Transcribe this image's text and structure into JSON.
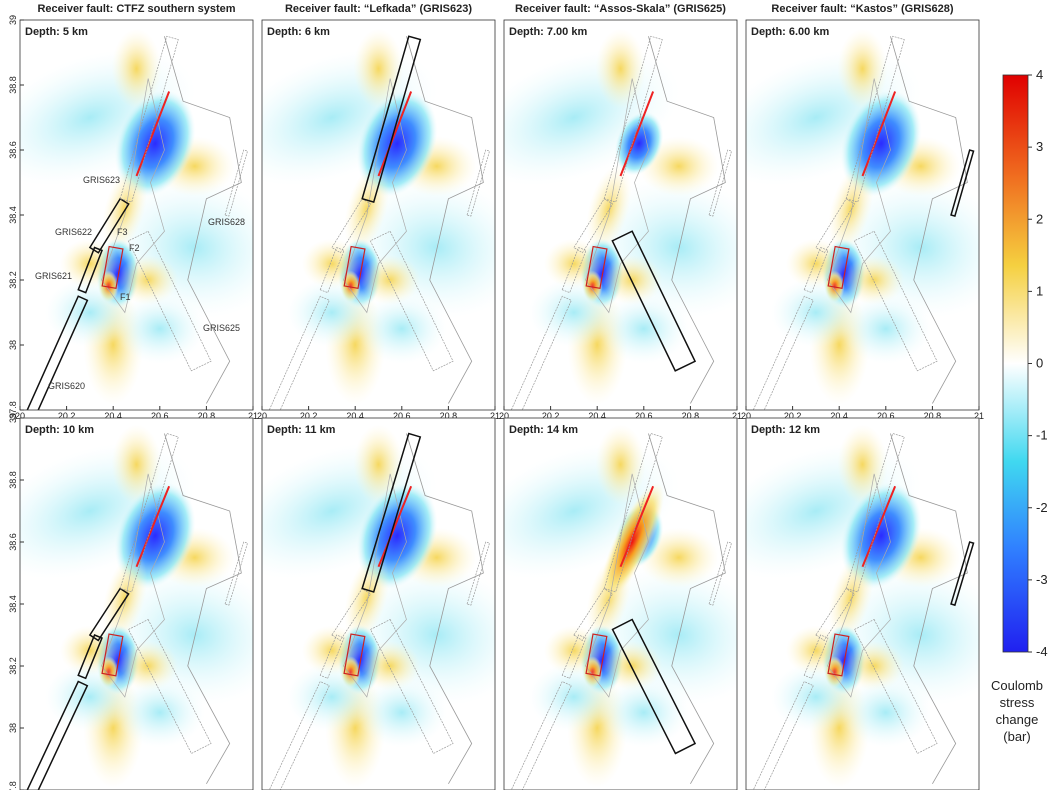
{
  "columns": [
    {
      "title": "Receiver fault: CTFZ southern system"
    },
    {
      "title": "Receiver fault: “Lefkada” (GRIS623)"
    },
    {
      "title": "Receiver fault: “Assos-Skala” (GRIS625)"
    },
    {
      "title": "Receiver fault: “Kastos” (GRIS628)"
    }
  ],
  "panels": [
    {
      "depth": "Depth: 5 km"
    },
    {
      "depth": "Depth: 6 km"
    },
    {
      "depth": "Depth: 7.00 km"
    },
    {
      "depth": "Depth: 6.00 km"
    },
    {
      "depth": "Depth: 10 km"
    },
    {
      "depth": "Depth: 11 km"
    },
    {
      "depth": "Depth: 14 km"
    },
    {
      "depth": "Depth: 12 km"
    }
  ],
  "map": {
    "xlim": [
      20,
      21
    ],
    "ylim": [
      37.8,
      39
    ],
    "xticks": [
      20,
      20.2,
      20.4,
      20.6,
      20.8,
      21
    ],
    "yticks": [
      37.8,
      38,
      38.2,
      38.4,
      38.6,
      38.8,
      39
    ]
  },
  "fault_labels": [
    "GRIS623",
    "GRIS622",
    "GRIS621",
    "GRIS620",
    "GRIS628",
    "GRIS625",
    "F3",
    "F2",
    "F1"
  ],
  "colorbar": {
    "lim": [
      -4,
      4
    ],
    "ticks": [
      4,
      3,
      2,
      1,
      0,
      -1,
      -2,
      -3,
      -4
    ],
    "label": [
      "Coulomb",
      "stress",
      "change",
      "(bar)"
    ]
  }
}
